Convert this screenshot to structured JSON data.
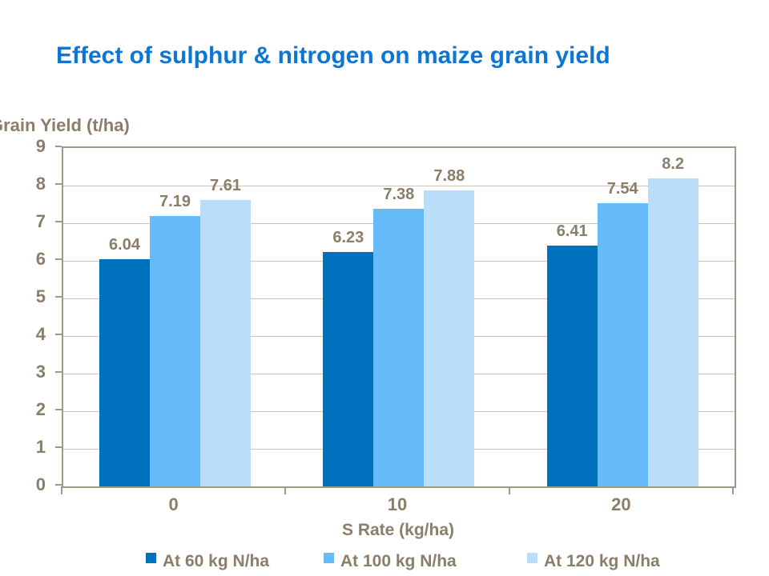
{
  "title": "Effect of sulphur & nitrogen on maize grain yield",
  "chart_data": {
    "type": "bar",
    "title": "Effect of sulphur & nitrogen on maize grain yield",
    "xlabel": "S Rate (kg/ha)",
    "ylabel": "Grain Yield (t/ha)",
    "categories": [
      "0",
      "10",
      "20"
    ],
    "series": [
      {
        "name": "At 60 kg N/ha",
        "color": "#0072BD",
        "values": [
          6.04,
          6.23,
          6.41
        ]
      },
      {
        "name": "At 100 kg N/ha",
        "color": "#66BBFA",
        "values": [
          7.19,
          7.38,
          7.54
        ]
      },
      {
        "name": "At 120 kg N/ha",
        "color": "#BADDF9",
        "values": [
          7.61,
          7.88,
          8.2
        ]
      }
    ],
    "data_labels": [
      [
        "6.04",
        "7.19",
        "7.61"
      ],
      [
        "6.23",
        "7.38",
        "7.88"
      ],
      [
        "6.41",
        "7.54",
        "8.2"
      ]
    ],
    "ylim": [
      0,
      9
    ],
    "yticks": [
      0,
      1,
      2,
      3,
      4,
      5,
      6,
      7,
      8,
      9
    ],
    "grid": true,
    "legend_position": "bottom"
  },
  "colors": {
    "title_text": "#0C76D2",
    "axis_text": "#8A7E6A",
    "grid_line": "#CBC3B7",
    "axis_line": "#A29889",
    "background": "#FFFFFF"
  }
}
